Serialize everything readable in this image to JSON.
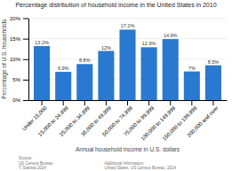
{
  "chart_data": {
    "type": "bar",
    "title": "Percentage distribution of household income in the United States in 2010",
    "categories": [
      "Under 15,000",
      "15,000 to 24,999",
      "25,000 to 34,999",
      "35,000 to 49,999",
      "50,000 to 74,999",
      "75,000 to 99,999",
      "100,000 to 149,999",
      "150,000 to 199,999",
      "200,000 and over"
    ],
    "values": [
      13.2,
      6.9,
      8.8,
      12,
      17.2,
      12.9,
      14.9,
      7,
      8.5
    ],
    "value_labels": [
      "13.2%",
      "6.9%",
      "8.8%",
      "12%",
      "17.2%",
      "12.9%",
      "14.9%",
      "7%",
      "8.5%"
    ],
    "data_labels": true,
    "color": "#2979d0",
    "xlabel": "Annual household income in U.S. dollars",
    "ylabel": "Percentage of U.S. households",
    "ylim": [
      0,
      20
    ],
    "yticks": [
      {
        "value": 0,
        "label": "0%"
      },
      {
        "value": 5,
        "label": "5%"
      },
      {
        "value": 10,
        "label": "10%"
      },
      {
        "value": 15,
        "label": "15%"
      },
      {
        "value": 20,
        "label": "20%"
      }
    ],
    "grid": true,
    "annotations": [
      "Source:\nUS Census Bureau\n© Statista 2014",
      "Additional Information:\nUnited States, US Census Bureau, 2014"
    ]
  }
}
